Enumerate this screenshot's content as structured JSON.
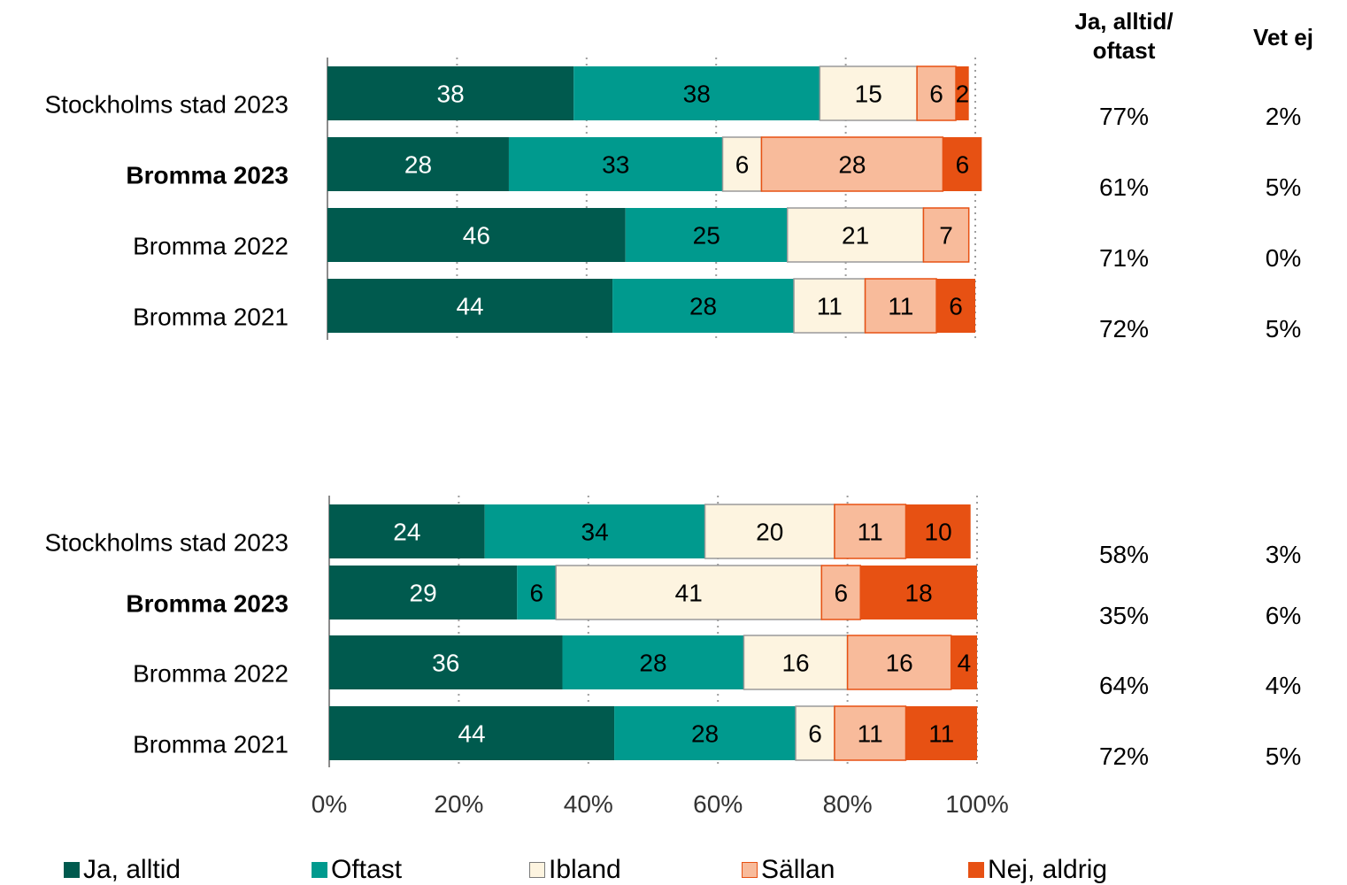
{
  "chart_data": {
    "type": "bar",
    "orientation": "horizontal",
    "stacked": true,
    "xlim": [
      0,
      100
    ],
    "x_ticks": [
      "0%",
      "20%",
      "40%",
      "60%",
      "80%",
      "100%"
    ],
    "grid": "vertical dotted",
    "legend_position": "bottom",
    "side_headers": [
      "Ja, alltid/\noftast",
      "Vet ej"
    ],
    "series": [
      {
        "name": "Ja, alltid",
        "color": "#005a4e",
        "label_color": "#ffffff"
      },
      {
        "name": "Oftast",
        "color": "#009a8e",
        "label_color": "#000000"
      },
      {
        "name": "Ibland",
        "color": "#fdf4e0",
        "label_color": "#000000"
      },
      {
        "name": "Sällan",
        "color": "#f8bb9b",
        "label_color": "#000000"
      },
      {
        "name": "Nej, aldrig",
        "color": "#e75113",
        "label_color": "#000000"
      }
    ],
    "panels": [
      {
        "rows": [
          {
            "category": "Stockholms stad 2023",
            "bold": false,
            "values": [
              38,
              38,
              15,
              6,
              2
            ],
            "ja_oftast": "77%",
            "vet_ej": "2%"
          },
          {
            "category": "Bromma 2023",
            "bold": true,
            "values": [
              28,
              33,
              6,
              28,
              6
            ],
            "ja_oftast": "61%",
            "vet_ej": "5%"
          },
          {
            "category": "Bromma 2022",
            "bold": false,
            "values": [
              46,
              25,
              21,
              7,
              0
            ],
            "ja_oftast": "71%",
            "vet_ej": "0%"
          },
          {
            "category": "Bromma 2021",
            "bold": false,
            "values": [
              44,
              28,
              11,
              11,
              6
            ],
            "ja_oftast": "72%",
            "vet_ej": "5%"
          }
        ]
      },
      {
        "rows": [
          {
            "category": "Stockholms stad 2023",
            "bold": false,
            "values": [
              24,
              34,
              20,
              11,
              10
            ],
            "ja_oftast": "58%",
            "vet_ej": "3%"
          },
          {
            "category": "Bromma 2023",
            "bold": true,
            "values": [
              29,
              6,
              41,
              6,
              18
            ],
            "ja_oftast": "35%",
            "vet_ej": "6%"
          },
          {
            "category": "Bromma 2022",
            "bold": false,
            "values": [
              36,
              28,
              16,
              16,
              4
            ],
            "ja_oftast": "64%",
            "vet_ej": "4%"
          },
          {
            "category": "Bromma 2021",
            "bold": false,
            "values": [
              44,
              28,
              6,
              11,
              11
            ],
            "ja_oftast": "72%",
            "vet_ej": "5%"
          }
        ]
      }
    ]
  }
}
